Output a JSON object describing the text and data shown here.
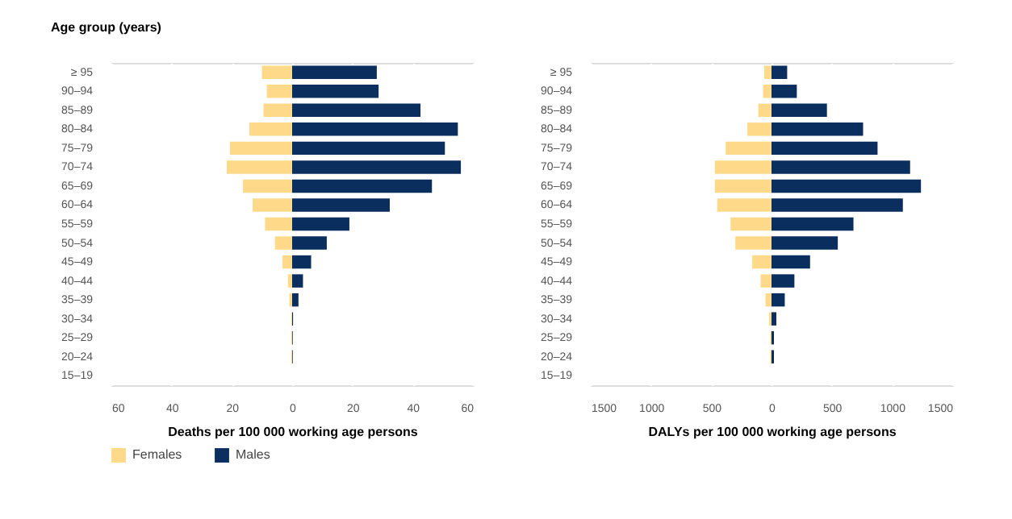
{
  "chart_data": [
    {
      "type": "bar",
      "orientation": "horizontal",
      "stacked": true,
      "ylabel": "Age group (years)",
      "xlabel": "Deaths per 100 000 working age persons",
      "categories": [
        "≥ 95",
        "90–94",
        "85–89",
        "80–84",
        "75–79",
        "70–74",
        "65–69",
        "60–64",
        "55–59",
        "50–54",
        "45–49",
        "40–44",
        "35–39",
        "30–34",
        "25–29",
        "20–24",
        "15–19"
      ],
      "series": [
        {
          "name": "Females",
          "color": "#fed98a",
          "values": [
            -10,
            -8.4,
            -9.5,
            -14.2,
            -20.6,
            -21.7,
            -16.3,
            -13.1,
            -9,
            -5.7,
            -3.2,
            -1.4,
            -0.9,
            -0.3,
            -0.3,
            -0.3,
            null
          ]
        },
        {
          "name": "Males",
          "color": "#0a2f5f",
          "values": [
            28.1,
            28.7,
            42.6,
            55,
            50.7,
            56,
            46.4,
            32.4,
            19,
            11.5,
            6.3,
            3.6,
            2.1,
            0.3,
            0.2,
            0.2,
            null
          ]
        }
      ],
      "xlim": [
        -60,
        60
      ],
      "xticks": [
        {
          "value": -60,
          "label": "60"
        },
        {
          "value": -40,
          "label": "40"
        },
        {
          "value": -20,
          "label": "20"
        },
        0,
        20,
        40,
        60
      ],
      "grid": "x",
      "legend": "bottom"
    },
    {
      "type": "bar",
      "orientation": "horizontal",
      "stacked": true,
      "xlabel": "DALYs per 100 000 working age persons",
      "categories": [
        "≥ 95",
        "90–94",
        "85–89",
        "80–84",
        "75–79",
        "70–74",
        "65–69",
        "60–64",
        "55–59",
        "50–54",
        "45–49",
        "40–44",
        "35–39",
        "30–34",
        "25–29",
        "20–24",
        "15–19"
      ],
      "series": [
        {
          "color": "#fed98a",
          "values": [
            -60,
            -70,
            -110,
            -200,
            -380,
            -470,
            -470,
            -450,
            -340,
            -300,
            -160,
            -90,
            -50,
            -20,
            -10,
            -10,
            null
          ]
        },
        {
          "color": "#0a2f5f",
          "values": [
            130,
            210,
            460,
            760,
            880,
            1150,
            1240,
            1090,
            680,
            550,
            320,
            190,
            110,
            40,
            20,
            20,
            null
          ]
        }
      ],
      "xlim": [
        -1500,
        1500
      ],
      "xticks": [
        {
          "value": -1500,
          "label": "1500"
        },
        {
          "value": -1000,
          "label": "1000"
        },
        {
          "value": -500,
          "label": "500"
        },
        0,
        500,
        1000,
        1500
      ],
      "grid": "x",
      "legend": false
    }
  ]
}
